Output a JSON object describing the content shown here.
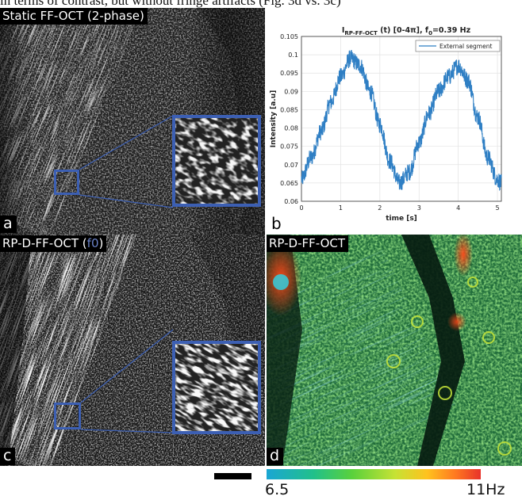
{
  "caption_fragment": "in terms of contrast, but without fringe artifacts (Fig. 3d vs. 3c)",
  "panels": {
    "a": {
      "title": "Static FF-OCT (2-phase)",
      "letter": "a"
    },
    "b": {
      "letter": "b"
    },
    "c": {
      "title_main": "RP-D-FF-OCT (",
      "title_f0": "f0",
      "title_end": ")",
      "letter": "c"
    },
    "d": {
      "title": "RP-D-FF-OCT",
      "letter": "d"
    }
  },
  "colorbar": {
    "min_label": "6.5",
    "max_label": "11Hz",
    "min": 6.5,
    "max": 11
  },
  "chart_data": {
    "type": "line",
    "title": "I_RP-FF-OCT (t) [0-4π], f0=0.39 Hz",
    "title_main": "I",
    "title_sub": "RP-FF-OCT",
    "title_rest": " (t)  [0-4π], f",
    "title_sub0": "0",
    "title_end": "=0.39 Hz",
    "xlabel": "time [s]",
    "ylabel": "Intensity [a.u]",
    "xlim": [
      0,
      5.1
    ],
    "ylim": [
      0.06,
      0.105
    ],
    "xticks": [
      0,
      1,
      2,
      3,
      4,
      5
    ],
    "yticks": [
      0.06,
      0.065,
      0.07,
      0.075,
      0.08,
      0.085,
      0.09,
      0.095,
      0.1,
      0.105
    ],
    "grid": true,
    "legend_position": "top-right",
    "series": [
      {
        "name": "External segment",
        "color": "#2f7fc4",
        "x": [
          0,
          0.25,
          0.5,
          0.75,
          1.0,
          1.25,
          1.5,
          1.75,
          2.0,
          2.25,
          2.5,
          2.75,
          3.0,
          3.25,
          3.5,
          3.75,
          4.0,
          4.25,
          4.5,
          4.75,
          5.0,
          5.1
        ],
        "y": [
          0.066,
          0.072,
          0.079,
          0.087,
          0.094,
          0.099,
          0.097,
          0.09,
          0.081,
          0.071,
          0.065,
          0.068,
          0.076,
          0.084,
          0.09,
          0.094,
          0.097,
          0.093,
          0.083,
          0.072,
          0.066,
          0.065
        ]
      }
    ]
  }
}
